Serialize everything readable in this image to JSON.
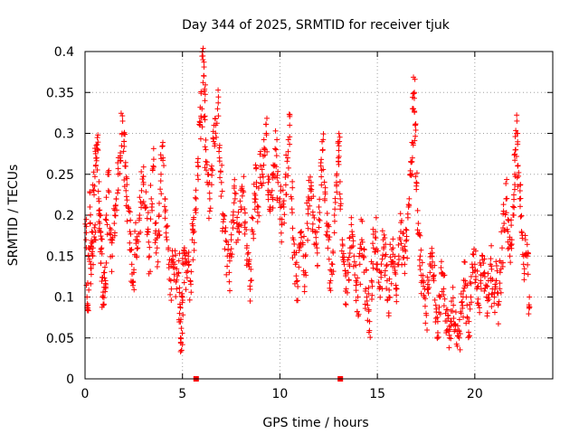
{
  "chart_data": {
    "type": "scatter",
    "title": "Day 344 of 2025, SRMTID for receiver tjuk",
    "xlabel": "GPS time / hours",
    "ylabel": "SRMTID / TECUs",
    "xlim": [
      0,
      24
    ],
    "ylim": [
      0,
      0.4
    ],
    "xticks": [
      0,
      5,
      10,
      15,
      20
    ],
    "yticks": [
      0,
      0.05,
      0.1,
      0.15,
      0.2,
      0.25,
      0.3,
      0.35,
      0.4
    ],
    "xtick_labels": [
      "0",
      "5",
      "10",
      "15",
      "20"
    ],
    "ytick_labels": [
      "0",
      "0.05",
      "0.1",
      "0.15",
      "0.2",
      "0.25",
      "0.3",
      "0.35",
      "0.4"
    ],
    "grid": true,
    "legend": "none",
    "marker": "+",
    "color": "#ff0000",
    "zero_markers_x": [
      5.7,
      13.1
    ],
    "series": [
      {
        "points": [
          [
            0.05,
            0.17
          ],
          [
            0.1,
            0.1
          ],
          [
            0.15,
            0.09
          ],
          [
            0.2,
            0.16
          ],
          [
            0.25,
            0.21
          ],
          [
            0.3,
            0.14
          ],
          [
            0.35,
            0.18
          ],
          [
            0.4,
            0.15
          ],
          [
            0.45,
            0.23
          ],
          [
            0.5,
            0.17
          ],
          [
            0.55,
            0.26
          ],
          [
            0.6,
            0.27
          ],
          [
            0.65,
            0.28
          ],
          [
            0.7,
            0.22
          ],
          [
            0.75,
            0.19
          ],
          [
            0.8,
            0.18
          ],
          [
            0.85,
            0.16
          ],
          [
            0.9,
            0.1
          ],
          [
            0.95,
            0.09
          ],
          [
            1.0,
            0.13
          ],
          [
            1.05,
            0.12
          ],
          [
            1.1,
            0.2
          ],
          [
            1.2,
            0.23
          ],
          [
            1.3,
            0.17
          ],
          [
            1.4,
            0.15
          ],
          [
            1.5,
            0.19
          ],
          [
            1.6,
            0.22
          ],
          [
            1.7,
            0.25
          ],
          [
            1.8,
            0.27
          ],
          [
            1.9,
            0.3
          ],
          [
            2.0,
            0.29
          ],
          [
            2.05,
            0.26
          ],
          [
            2.1,
            0.23
          ],
          [
            2.2,
            0.21
          ],
          [
            2.3,
            0.18
          ],
          [
            2.4,
            0.14
          ],
          [
            2.5,
            0.13
          ],
          [
            2.6,
            0.17
          ],
          [
            2.7,
            0.16
          ],
          [
            2.8,
            0.2
          ],
          [
            2.9,
            0.23
          ],
          [
            3.0,
            0.24
          ],
          [
            3.1,
            0.21
          ],
          [
            3.2,
            0.18
          ],
          [
            3.3,
            0.15
          ],
          [
            3.4,
            0.22
          ],
          [
            3.5,
            0.26
          ],
          [
            3.6,
            0.19
          ],
          [
            3.7,
            0.16
          ],
          [
            3.8,
            0.2
          ],
          [
            3.9,
            0.25
          ],
          [
            4.0,
            0.27
          ],
          [
            4.1,
            0.22
          ],
          [
            4.2,
            0.17
          ],
          [
            4.3,
            0.14
          ],
          [
            4.4,
            0.12
          ],
          [
            4.5,
            0.15
          ],
          [
            4.6,
            0.14
          ],
          [
            4.7,
            0.11
          ],
          [
            4.8,
            0.13
          ],
          [
            4.85,
            0.08
          ],
          [
            4.9,
            0.05
          ],
          [
            4.95,
            0.035
          ],
          [
            5.0,
            0.1
          ],
          [
            5.05,
            0.14
          ],
          [
            5.1,
            0.16
          ],
          [
            5.2,
            0.13
          ],
          [
            5.3,
            0.15
          ],
          [
            5.4,
            0.12
          ],
          [
            5.5,
            0.17
          ],
          [
            5.6,
            0.18
          ],
          [
            5.7,
            0.22
          ],
          [
            5.8,
            0.26
          ],
          [
            5.9,
            0.31
          ],
          [
            6.0,
            0.33
          ],
          [
            6.05,
            0.39
          ],
          [
            6.1,
            0.37
          ],
          [
            6.15,
            0.34
          ],
          [
            6.2,
            0.28
          ],
          [
            6.3,
            0.25
          ],
          [
            6.4,
            0.22
          ],
          [
            6.5,
            0.26
          ],
          [
            6.6,
            0.29
          ],
          [
            6.7,
            0.31
          ],
          [
            6.8,
            0.33
          ],
          [
            6.9,
            0.27
          ],
          [
            7.0,
            0.24
          ],
          [
            7.1,
            0.2
          ],
          [
            7.2,
            0.18
          ],
          [
            7.3,
            0.15
          ],
          [
            7.4,
            0.13
          ],
          [
            7.5,
            0.17
          ],
          [
            7.6,
            0.2
          ],
          [
            7.7,
            0.22
          ],
          [
            7.8,
            0.19
          ],
          [
            7.9,
            0.18
          ],
          [
            8.0,
            0.21
          ],
          [
            8.1,
            0.23
          ],
          [
            8.2,
            0.19
          ],
          [
            8.3,
            0.16
          ],
          [
            8.4,
            0.14
          ],
          [
            8.5,
            0.12
          ],
          [
            8.6,
            0.18
          ],
          [
            8.7,
            0.22
          ],
          [
            8.8,
            0.24
          ],
          [
            8.9,
            0.21
          ],
          [
            9.0,
            0.26
          ],
          [
            9.1,
            0.25
          ],
          [
            9.2,
            0.28
          ],
          [
            9.3,
            0.3
          ],
          [
            9.4,
            0.24
          ],
          [
            9.5,
            0.21
          ],
          [
            9.6,
            0.23
          ],
          [
            9.7,
            0.26
          ],
          [
            9.8,
            0.28
          ],
          [
            9.9,
            0.24
          ],
          [
            10.0,
            0.22
          ],
          [
            10.1,
            0.19
          ],
          [
            10.2,
            0.21
          ],
          [
            10.3,
            0.25
          ],
          [
            10.4,
            0.27
          ],
          [
            10.5,
            0.31
          ],
          [
            10.6,
            0.22
          ],
          [
            10.7,
            0.17
          ],
          [
            10.8,
            0.14
          ],
          [
            10.9,
            0.12
          ],
          [
            11.0,
            0.16
          ],
          [
            11.1,
            0.18
          ],
          [
            11.2,
            0.15
          ],
          [
            11.3,
            0.13
          ],
          [
            11.4,
            0.19
          ],
          [
            11.5,
            0.22
          ],
          [
            11.6,
            0.24
          ],
          [
            11.7,
            0.2
          ],
          [
            11.8,
            0.18
          ],
          [
            11.9,
            0.16
          ],
          [
            12.0,
            0.21
          ],
          [
            12.1,
            0.26
          ],
          [
            12.2,
            0.28
          ],
          [
            12.3,
            0.22
          ],
          [
            12.4,
            0.19
          ],
          [
            12.5,
            0.17
          ],
          [
            12.6,
            0.12
          ],
          [
            12.7,
            0.14
          ],
          [
            12.8,
            0.2
          ],
          [
            12.9,
            0.24
          ],
          [
            13.0,
            0.27
          ],
          [
            13.05,
            0.29
          ],
          [
            13.1,
            0.22
          ],
          [
            13.2,
            0.17
          ],
          [
            13.3,
            0.14
          ],
          [
            13.4,
            0.11
          ],
          [
            13.5,
            0.13
          ],
          [
            13.6,
            0.16
          ],
          [
            13.7,
            0.18
          ],
          [
            13.8,
            0.15
          ],
          [
            13.9,
            0.12
          ],
          [
            14.0,
            0.1
          ],
          [
            14.1,
            0.14
          ],
          [
            14.2,
            0.17
          ],
          [
            14.3,
            0.15
          ],
          [
            14.4,
            0.11
          ],
          [
            14.5,
            0.09
          ],
          [
            14.6,
            0.07
          ],
          [
            14.7,
            0.12
          ],
          [
            14.8,
            0.16
          ],
          [
            14.9,
            0.18
          ],
          [
            15.0,
            0.14
          ],
          [
            15.1,
            0.11
          ],
          [
            15.2,
            0.13
          ],
          [
            15.3,
            0.17
          ],
          [
            15.4,
            0.15
          ],
          [
            15.5,
            0.12
          ],
          [
            15.6,
            0.1
          ],
          [
            15.7,
            0.14
          ],
          [
            15.8,
            0.16
          ],
          [
            15.9,
            0.13
          ],
          [
            16.0,
            0.11
          ],
          [
            16.1,
            0.15
          ],
          [
            16.2,
            0.18
          ],
          [
            16.3,
            0.16
          ],
          [
            16.4,
            0.14
          ],
          [
            16.5,
            0.17
          ],
          [
            16.6,
            0.21
          ],
          [
            16.7,
            0.25
          ],
          [
            16.8,
            0.27
          ],
          [
            16.85,
            0.33
          ],
          [
            16.9,
            0.35
          ],
          [
            16.95,
            0.31
          ],
          [
            17.0,
            0.24
          ],
          [
            17.1,
            0.19
          ],
          [
            17.2,
            0.15
          ],
          [
            17.3,
            0.12
          ],
          [
            17.4,
            0.1
          ],
          [
            17.5,
            0.08
          ],
          [
            17.6,
            0.11
          ],
          [
            17.7,
            0.13
          ],
          [
            17.8,
            0.15
          ],
          [
            17.9,
            0.12
          ],
          [
            18.0,
            0.09
          ],
          [
            18.1,
            0.07
          ],
          [
            18.2,
            0.1
          ],
          [
            18.3,
            0.13
          ],
          [
            18.4,
            0.11
          ],
          [
            18.5,
            0.08
          ],
          [
            18.6,
            0.06
          ],
          [
            18.7,
            0.05
          ],
          [
            18.8,
            0.07
          ],
          [
            18.9,
            0.09
          ],
          [
            19.0,
            0.06
          ],
          [
            19.1,
            0.04
          ],
          [
            19.2,
            0.05
          ],
          [
            19.3,
            0.08
          ],
          [
            19.4,
            0.1
          ],
          [
            19.5,
            0.12
          ],
          [
            19.6,
            0.09
          ],
          [
            19.7,
            0.07
          ],
          [
            19.8,
            0.1
          ],
          [
            19.9,
            0.13
          ],
          [
            20.0,
            0.14
          ],
          [
            20.1,
            0.11
          ],
          [
            20.2,
            0.09
          ],
          [
            20.3,
            0.12
          ],
          [
            20.4,
            0.15
          ],
          [
            20.5,
            0.13
          ],
          [
            20.6,
            0.1
          ],
          [
            20.7,
            0.12
          ],
          [
            20.8,
            0.14
          ],
          [
            20.9,
            0.11
          ],
          [
            21.0,
            0.1
          ],
          [
            21.1,
            0.12
          ],
          [
            21.2,
            0.09
          ],
          [
            21.3,
            0.13
          ],
          [
            21.4,
            0.16
          ],
          [
            21.5,
            0.19
          ],
          [
            21.6,
            0.22
          ],
          [
            21.7,
            0.18
          ],
          [
            21.8,
            0.15
          ],
          [
            21.9,
            0.17
          ],
          [
            22.0,
            0.2
          ],
          [
            22.05,
            0.25
          ],
          [
            22.1,
            0.28
          ],
          [
            22.15,
            0.3
          ],
          [
            22.2,
            0.26
          ],
          [
            22.3,
            0.22
          ],
          [
            22.4,
            0.18
          ],
          [
            22.5,
            0.14
          ],
          [
            22.6,
            0.17
          ],
          [
            22.7,
            0.15
          ],
          [
            22.8,
            0.1
          ]
        ]
      }
    ]
  }
}
